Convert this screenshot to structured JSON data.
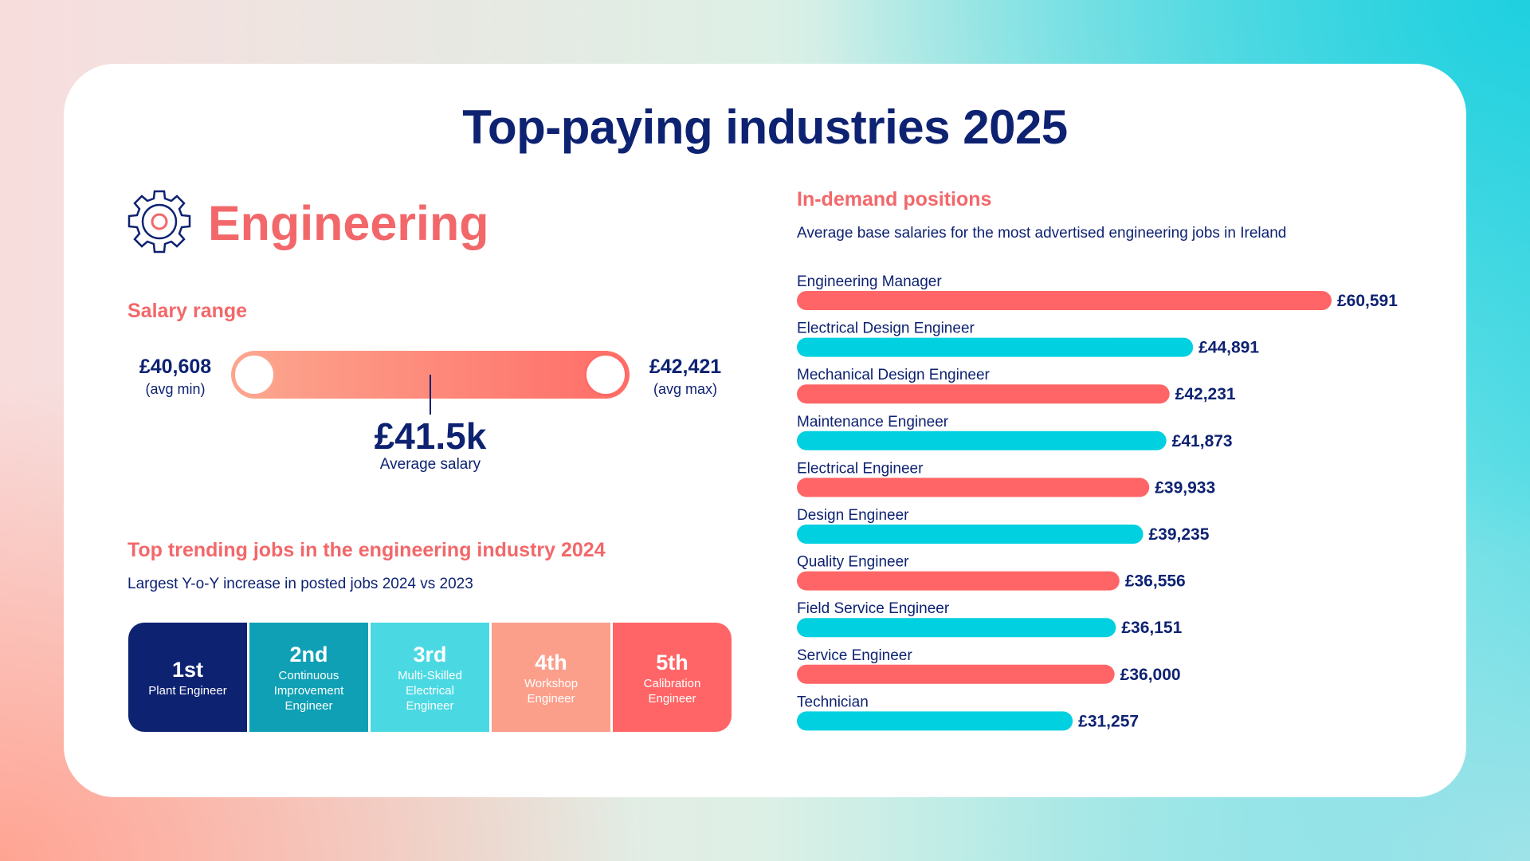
{
  "title": "Top-paying industries 2025",
  "industry": "Engineering",
  "salary_range": {
    "heading": "Salary range",
    "min_value": "£40,608",
    "min_label": "(avg min)",
    "max_value": "£42,421",
    "max_label": "(avg max)",
    "average_value": "£41.5k",
    "average_label": "Average salary"
  },
  "trending": {
    "heading": "Top trending jobs in the engineering industry 2024",
    "subtitle": "Largest Y-o-Y increase in posted jobs 2024 vs 2023",
    "tiles": [
      {
        "rank": "1st",
        "job": "Plant Engineer",
        "color": "#0e2272"
      },
      {
        "rank": "2nd",
        "job": "Continuous Improvement Engineer",
        "color": "#0fa0b5"
      },
      {
        "rank": "3rd",
        "job": "Multi-Skilled Electrical Engineer",
        "color": "#4ad9e3"
      },
      {
        "rank": "4th",
        "job": "Workshop Engineer",
        "color": "#fb9f8b"
      },
      {
        "rank": "5th",
        "job": "Calibration Engineer",
        "color": "#ff6566"
      }
    ]
  },
  "demand": {
    "heading": "In-demand positions",
    "subtitle": "Average base salaries for the most advertised engineering jobs in Ireland"
  },
  "colors": {
    "navy": "#0e2272",
    "coral": "#ff6566",
    "cyan": "#00d0e0",
    "heading_coral": "#f2686a"
  },
  "chart_data": {
    "type": "bar",
    "orientation": "horizontal",
    "categories": [
      "Engineering Manager",
      "Electrical Design Engineer",
      "Mechanical Design Engineer",
      "Maintenance Engineer",
      "Electrical Engineer",
      "Design Engineer",
      "Quality Engineer",
      "Field Service Engineer",
      "Service Engineer",
      "Technician"
    ],
    "values": [
      60591,
      44891,
      42231,
      41873,
      39933,
      39235,
      36556,
      36151,
      36000,
      31257
    ],
    "value_labels": [
      "£60,591",
      "£44,891",
      "£42,231",
      "£41,873",
      "£39,933",
      "£39,235",
      "£36,556",
      "£36,151",
      "£36,000",
      "£31,257"
    ],
    "bar_colors": [
      "#ff6566",
      "#00d0e0"
    ],
    "xlim": [
      0,
      60591
    ],
    "grid": false
  }
}
